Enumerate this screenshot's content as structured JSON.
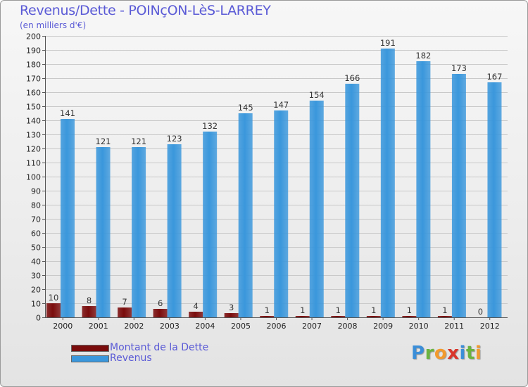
{
  "chart_data": {
    "type": "bar",
    "title": "Revenus/Dette - POINçON-LèS-LARREY",
    "subtitle": "(en milliers d'€)",
    "categories": [
      "2000",
      "2001",
      "2002",
      "2003",
      "2004",
      "2005",
      "2006",
      "2007",
      "2008",
      "2009",
      "2010",
      "2011",
      "2012"
    ],
    "series": [
      {
        "name": "Montant de la Dette",
        "color": "#7a0c0c",
        "values": [
          10,
          8,
          7,
          6,
          4,
          3,
          1,
          1,
          1,
          1,
          1,
          1,
          0
        ]
      },
      {
        "name": "Revenus",
        "color": "#3a97dc",
        "values": [
          141,
          121,
          121,
          123,
          132,
          145,
          147,
          154,
          166,
          191,
          182,
          173,
          167
        ]
      }
    ],
    "ylim": [
      0,
      200
    ],
    "ytick_step": 10,
    "grid": true,
    "xlabel": "",
    "ylabel": "",
    "legend": "bottom-left"
  },
  "branding": {
    "letters": [
      {
        "char": "P",
        "color": "#3b8ed8"
      },
      {
        "char": "r",
        "color": "#6ab33f"
      },
      {
        "char": "o",
        "color": "#f29a2e"
      },
      {
        "char": "x",
        "color": "#d9362b"
      },
      {
        "char": "i",
        "color": "#3b8ed8"
      },
      {
        "char": "t",
        "color": "#6ab33f"
      },
      {
        "char": "i",
        "color": "#f29a2e"
      }
    ]
  }
}
